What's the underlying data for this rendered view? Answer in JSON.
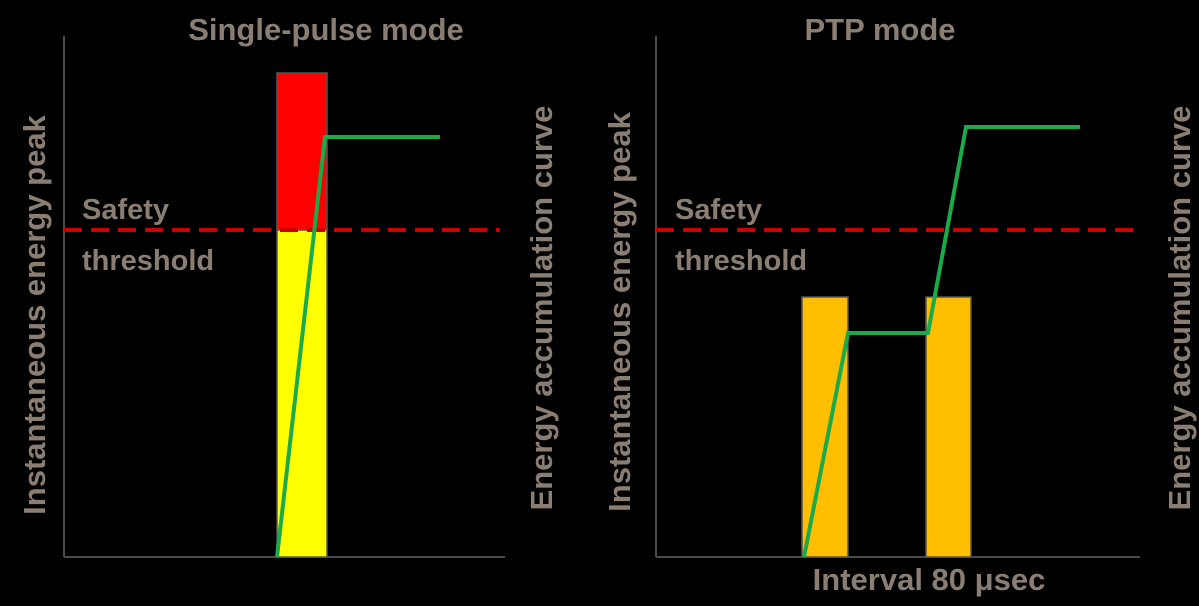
{
  "colors": {
    "background": "#000000",
    "text": "#8a7e73",
    "axis": "#4a4a4a",
    "threshold": "#cc0000",
    "curve": "#1aaa4a",
    "pulse_over": "#ff0000",
    "pulse_under": "#ffff00",
    "pulse_ptp": "#ffbf00"
  },
  "panels": [
    {
      "title": "Single-pulse mode",
      "left_axis_label": "Instantaneous energy peak",
      "right_axis_label": "Energy accumulation curve",
      "threshold_label_line1": "Safety",
      "threshold_label_line2": "threshold",
      "x_label": ""
    },
    {
      "title": "PTP mode",
      "left_axis_label": "Instantaneous energy peak",
      "right_axis_label": "Energy accumulation curve",
      "threshold_label_line1": "Safety",
      "threshold_label_line2": "threshold",
      "x_label": "Interval 80 μsec"
    }
  ]
}
